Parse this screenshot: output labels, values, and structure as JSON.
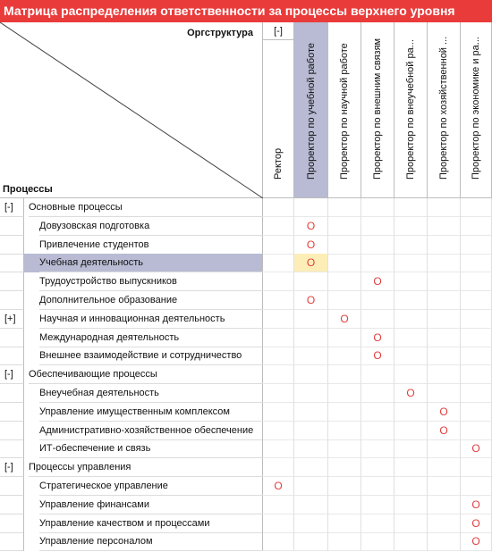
{
  "title": "Матрица распределения ответственности за процессы верхнего уровня",
  "header": {
    "org_label": "Оргструктура",
    "processes_label": "Процессы",
    "column_toggle": "[-]"
  },
  "columns": [
    {
      "label": "Ректор",
      "selected": false
    },
    {
      "label": "Проректор по учебной работе",
      "selected": true
    },
    {
      "label": "Проректор по научной работе",
      "selected": false
    },
    {
      "label": "Проректор по внешним связям",
      "selected": false
    },
    {
      "label": "Проректор по внеучебной ра...",
      "selected": false
    },
    {
      "label": "Проректор по хозяйственной ...",
      "selected": false
    },
    {
      "label": "Проректор по экономике и ра...",
      "selected": false
    }
  ],
  "mark": "O",
  "rows": [
    {
      "toggle": "[-]",
      "label": "Основные процессы",
      "level": 0,
      "selected": false,
      "mark_col": -1
    },
    {
      "toggle": "",
      "label": "Довузовская подготовка",
      "level": 1,
      "selected": false,
      "mark_col": 1
    },
    {
      "toggle": "",
      "label": "Привлечение студентов",
      "level": 1,
      "selected": false,
      "mark_col": 1
    },
    {
      "toggle": "",
      "label": "Учебная деятельность",
      "level": 1,
      "selected": true,
      "mark_col": 1
    },
    {
      "toggle": "",
      "label": "Трудоустройство выпускников",
      "level": 1,
      "selected": false,
      "mark_col": 3
    },
    {
      "toggle": "",
      "label": "Дополнительное образование",
      "level": 1,
      "selected": false,
      "mark_col": 1
    },
    {
      "toggle": "[+]",
      "label": "Научная и инновационная деятельность",
      "level": 1,
      "selected": false,
      "mark_col": 2
    },
    {
      "toggle": "",
      "label": "Международная деятельность",
      "level": 1,
      "selected": false,
      "mark_col": 3
    },
    {
      "toggle": "",
      "label": "Внешнее взаимодействие и сотрудничество",
      "level": 1,
      "selected": false,
      "mark_col": 3
    },
    {
      "toggle": "[-]",
      "label": "Обеспечивающие процессы",
      "level": 0,
      "selected": false,
      "mark_col": -1
    },
    {
      "toggle": "",
      "label": "Внеучебная деятельность",
      "level": 1,
      "selected": false,
      "mark_col": 4
    },
    {
      "toggle": "",
      "label": "Управление имущественным комплексом",
      "level": 1,
      "selected": false,
      "mark_col": 5
    },
    {
      "toggle": "",
      "label": "Административно-хозяйственное обеспечение",
      "level": 1,
      "selected": false,
      "mark_col": 5
    },
    {
      "toggle": "",
      "label": "ИТ-обеспечение и связь",
      "level": 1,
      "selected": false,
      "mark_col": 6
    },
    {
      "toggle": "[-]",
      "label": "Процессы управления",
      "level": 0,
      "selected": false,
      "mark_col": -1
    },
    {
      "toggle": "",
      "label": "Стратегическое управление",
      "level": 1,
      "selected": false,
      "mark_col": 0
    },
    {
      "toggle": "",
      "label": "Управление финансами",
      "level": 1,
      "selected": false,
      "mark_col": 6
    },
    {
      "toggle": "",
      "label": "Управление качеством и процессами",
      "level": 1,
      "selected": false,
      "mark_col": 6
    },
    {
      "toggle": "",
      "label": "Управление персоналом",
      "level": 1,
      "selected": false,
      "mark_col": 6
    }
  ]
}
